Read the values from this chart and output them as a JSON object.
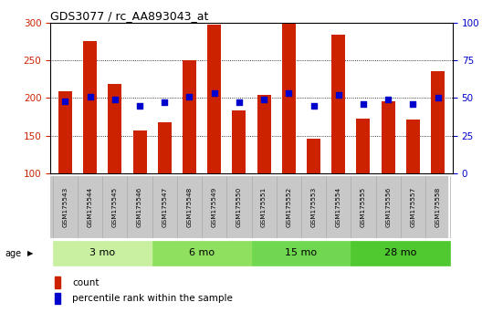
{
  "title": "GDS3077 / rc_AA893043_at",
  "samples": [
    "GSM175543",
    "GSM175544",
    "GSM175545",
    "GSM175546",
    "GSM175547",
    "GSM175548",
    "GSM175549",
    "GSM175550",
    "GSM175551",
    "GSM175552",
    "GSM175553",
    "GSM175554",
    "GSM175555",
    "GSM175556",
    "GSM175557",
    "GSM175558"
  ],
  "counts": [
    209,
    276,
    218,
    157,
    168,
    250,
    297,
    184,
    204,
    298,
    146,
    284,
    173,
    196,
    171,
    236
  ],
  "percentiles": [
    48,
    51,
    49,
    45,
    47,
    51,
    53,
    47,
    49,
    53,
    45,
    52,
    46,
    49,
    46,
    50
  ],
  "ylim_left": [
    100,
    300
  ],
  "ylim_right": [
    0,
    100
  ],
  "yticks_left": [
    100,
    150,
    200,
    250,
    300
  ],
  "yticks_right": [
    0,
    25,
    50,
    75,
    100
  ],
  "age_groups": [
    {
      "label": "3 mo",
      "indices": [
        0,
        1,
        2,
        3
      ],
      "color": "#c8f0a0"
    },
    {
      "label": "6 mo",
      "indices": [
        4,
        5,
        6,
        7
      ],
      "color": "#90e060"
    },
    {
      "label": "15 mo",
      "indices": [
        8,
        9,
        10,
        11
      ],
      "color": "#70d850"
    },
    {
      "label": "28 mo",
      "indices": [
        12,
        13,
        14,
        15
      ],
      "color": "#50c830"
    }
  ],
  "bar_color": "#cc2200",
  "dot_color": "#0000cc",
  "bar_bottom": 100,
  "bar_width": 0.55,
  "background_label": "#c8c8c8",
  "legend_count_label": "count",
  "legend_pct_label": "percentile rank within the sample",
  "ylabel_left_color": "#cc2200",
  "ylabel_right_color": "#0000cc"
}
